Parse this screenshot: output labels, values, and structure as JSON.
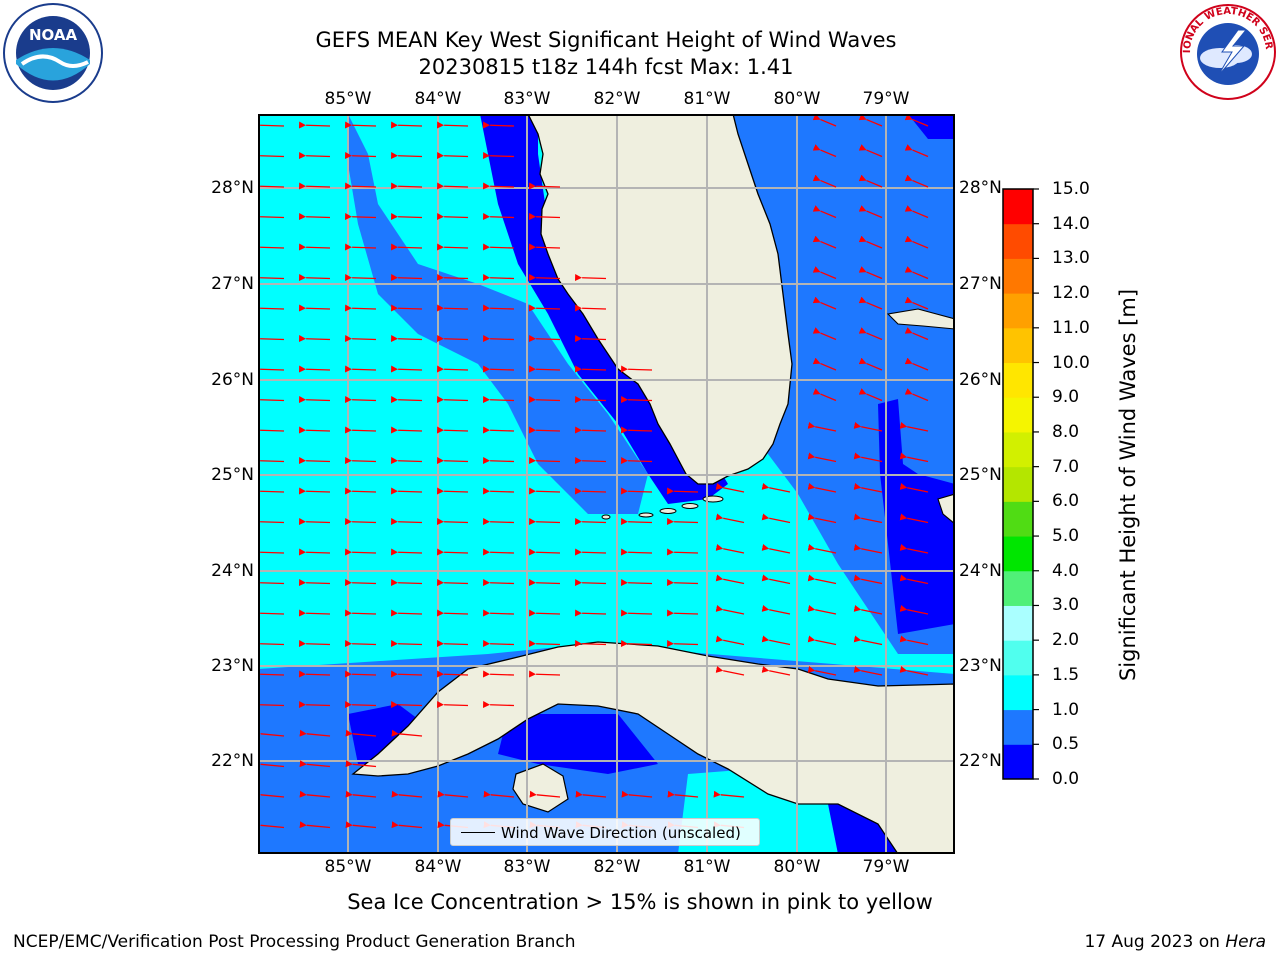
{
  "title_line1": "GEFS MEAN Key West Significant Height of Wind Waves",
  "title_line2": "20230815 t18z 144h fcst   Max: 1.41",
  "lon_ticks": [
    "85°W",
    "84°W",
    "83°W",
    "82°W",
    "81°W",
    "80°W",
    "79°W"
  ],
  "lat_ticks": [
    "28°N",
    "27°N",
    "26°N",
    "25°N",
    "24°N",
    "23°N",
    "22°N"
  ],
  "colorbar": {
    "label": "Significant Height of Wind Waves [m]",
    "ticks": [
      "0.0",
      "0.5",
      "1.0",
      "1.5",
      "2.0",
      "3.0",
      "4.0",
      "5.0",
      "6.0",
      "7.0",
      "8.0",
      "9.0",
      "10.0",
      "11.0",
      "12.0",
      "13.0",
      "14.0",
      "15.0"
    ],
    "colors": [
      "#0000ff",
      "#1e78ff",
      "#00ffff",
      "#50ffee",
      "#aaffff",
      "#50f078",
      "#00e600",
      "#50dc14",
      "#b4e600",
      "#d2f000",
      "#f5f500",
      "#ffe600",
      "#ffc300",
      "#ffa000",
      "#ff7800",
      "#ff4b00",
      "#ff0000"
    ]
  },
  "legend": {
    "label": "Wind Wave Direction (unscaled)"
  },
  "note": "Sea Ice Concentration > 15% is shown in pink to yellow",
  "footer_left": "NCEP/EMC/Verification Post Processing Product Generation Branch",
  "footer_right_date": "17 Aug 2023 on",
  "footer_right_host": "Hera",
  "logos": {
    "left": "noaa-logo",
    "right": "national-weather-service-logo"
  },
  "logo_text": {
    "noaa": "NOAA",
    "nws": "NATIONAL WEATHER SERVICE"
  },
  "colors": {
    "land": "#efefdf",
    "arrow": "#ff0000",
    "grid": "#b4b4b4"
  }
}
